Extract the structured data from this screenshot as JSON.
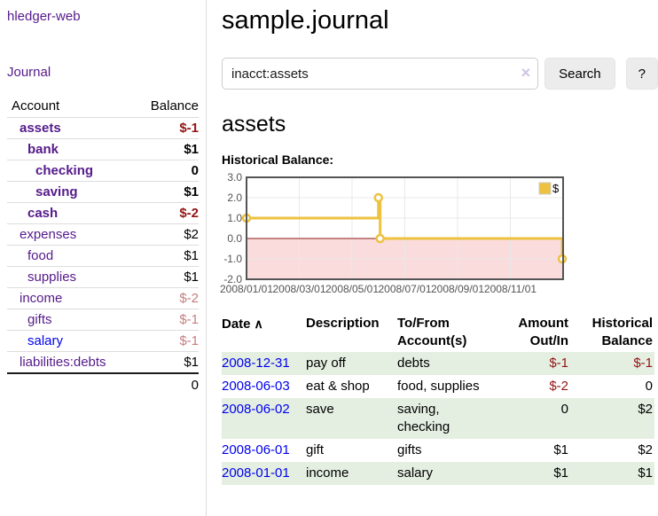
{
  "app": {
    "title": "hledger-web",
    "nav_journal": "Journal"
  },
  "sidebar": {
    "header": {
      "account": "Account",
      "balance": "Balance"
    },
    "accounts": [
      {
        "name": "assets",
        "depth": 1,
        "balance": "$-1",
        "bold": true,
        "balance_style": "neg",
        "link_style": "plink"
      },
      {
        "name": "bank",
        "depth": 2,
        "balance": "$1",
        "bold": true,
        "balance_style": "normal",
        "link_style": "plink"
      },
      {
        "name": "checking",
        "depth": 3,
        "balance": "0",
        "bold": true,
        "balance_style": "normal",
        "link_style": "plink"
      },
      {
        "name": "saving",
        "depth": 3,
        "balance": "$1",
        "bold": true,
        "balance_style": "normal",
        "link_style": "plink"
      },
      {
        "name": "cash",
        "depth": 2,
        "balance": "$-2",
        "bold": true,
        "balance_style": "neg",
        "link_style": "plink"
      },
      {
        "name": "expenses",
        "depth": 1,
        "balance": "$2",
        "bold": false,
        "balance_style": "normal",
        "link_style": "plink"
      },
      {
        "name": "food",
        "depth": 2,
        "balance": "$1",
        "bold": false,
        "balance_style": "normal",
        "link_style": "plink"
      },
      {
        "name": "supplies",
        "depth": 2,
        "balance": "$1",
        "bold": false,
        "balance_style": "normal",
        "link_style": "plink"
      },
      {
        "name": "income",
        "depth": 1,
        "balance": "$-2",
        "bold": false,
        "balance_style": "neg-faded",
        "link_style": "plink"
      },
      {
        "name": "gifts",
        "depth": 2,
        "balance": "$-1",
        "bold": false,
        "balance_style": "neg-faded",
        "link_style": "plink"
      },
      {
        "name": "salary",
        "depth": 2,
        "balance": "$-1",
        "bold": false,
        "balance_style": "neg-faded",
        "link_style": "blink"
      },
      {
        "name": "liabilities:debts",
        "depth": 1,
        "balance": "$1",
        "bold": false,
        "balance_style": "normal",
        "link_style": "plink"
      }
    ],
    "total": "0"
  },
  "header": {
    "title": "sample.journal"
  },
  "search": {
    "value": "inacct:assets",
    "clear_icon": "×",
    "button": "Search",
    "help_button": "?"
  },
  "account_page": {
    "title": "assets",
    "chart_label": "Historical Balance:"
  },
  "chart_data": {
    "type": "line",
    "step": true,
    "title": "Historical Balance",
    "series": [
      {
        "name": "$",
        "color": "#edc240",
        "points": [
          [
            "2008-01-01",
            1
          ],
          [
            "2008-06-01",
            2
          ],
          [
            "2008-06-03",
            0
          ],
          [
            "2008-12-31",
            -1
          ]
        ]
      }
    ],
    "ylim": [
      -2.0,
      3.0
    ],
    "x_months_range": [
      0,
      12
    ],
    "x_epoch_year": 2008,
    "yticks": [
      {
        "v": 3.0,
        "label": "3.0"
      },
      {
        "v": 2.0,
        "label": "2.0"
      },
      {
        "v": 1.0,
        "label": "1.0"
      },
      {
        "v": 0.0,
        "label": "0.0"
      },
      {
        "v": -1.0,
        "label": "-1.0"
      },
      {
        "v": -2.0,
        "label": "-2.0"
      }
    ],
    "xticks": [
      {
        "month": 0,
        "label": "2008/01/01"
      },
      {
        "month": 2,
        "label": "2008/03/01"
      },
      {
        "month": 4,
        "label": "2008/05/01"
      },
      {
        "month": 6,
        "label": "2008/07/01"
      },
      {
        "month": 8,
        "label": "2008/09/01"
      },
      {
        "month": 10,
        "label": "2008/11/01"
      }
    ],
    "legend": {
      "label": "$",
      "position": "top-right"
    },
    "grid": true,
    "colors": {
      "line": "#edc240",
      "marker_fill": "#ffffff",
      "negative_region": "#fbdcdc",
      "zero_line": "#8b1a1a",
      "grid_line": "#e8e8e8",
      "border": "#545454",
      "tick_text": "#545454"
    }
  },
  "register": {
    "columns": {
      "date": "Date",
      "sort_indicator": "∧",
      "description": "Description",
      "tofrom": "To/From Account(s)",
      "amount": "Amount Out/In",
      "historical": "Historical Balance"
    },
    "rows": [
      {
        "date": "2008-12-31",
        "description": "pay off",
        "accounts": "debts",
        "amount": "$-1",
        "amount_neg": true,
        "balance": "$-1",
        "balance_neg": true,
        "stripe": true
      },
      {
        "date": "2008-06-03",
        "description": "eat & shop",
        "accounts": "food, supplies",
        "amount": "$-2",
        "amount_neg": true,
        "balance": "0",
        "balance_neg": false,
        "stripe": false
      },
      {
        "date": "2008-06-02",
        "description": "save",
        "accounts": "saving, checking",
        "amount": "0",
        "amount_neg": false,
        "balance": "$2",
        "balance_neg": false,
        "stripe": true
      },
      {
        "date": "2008-06-01",
        "description": "gift",
        "accounts": "gifts",
        "amount": "$1",
        "amount_neg": false,
        "balance": "$2",
        "balance_neg": false,
        "stripe": false
      },
      {
        "date": "2008-01-01",
        "description": "income",
        "accounts": "salary",
        "amount": "$1",
        "amount_neg": false,
        "balance": "$1",
        "balance_neg": false,
        "stripe": true
      }
    ]
  },
  "colors": {
    "visited_link_purple": "#551a8b",
    "link_blue": "#0000ee",
    "negative_red": "#941414",
    "negative_faded_red": "#c47e7e",
    "row_stripe_green": "#e4efe2",
    "series_gold": "#edc240"
  }
}
